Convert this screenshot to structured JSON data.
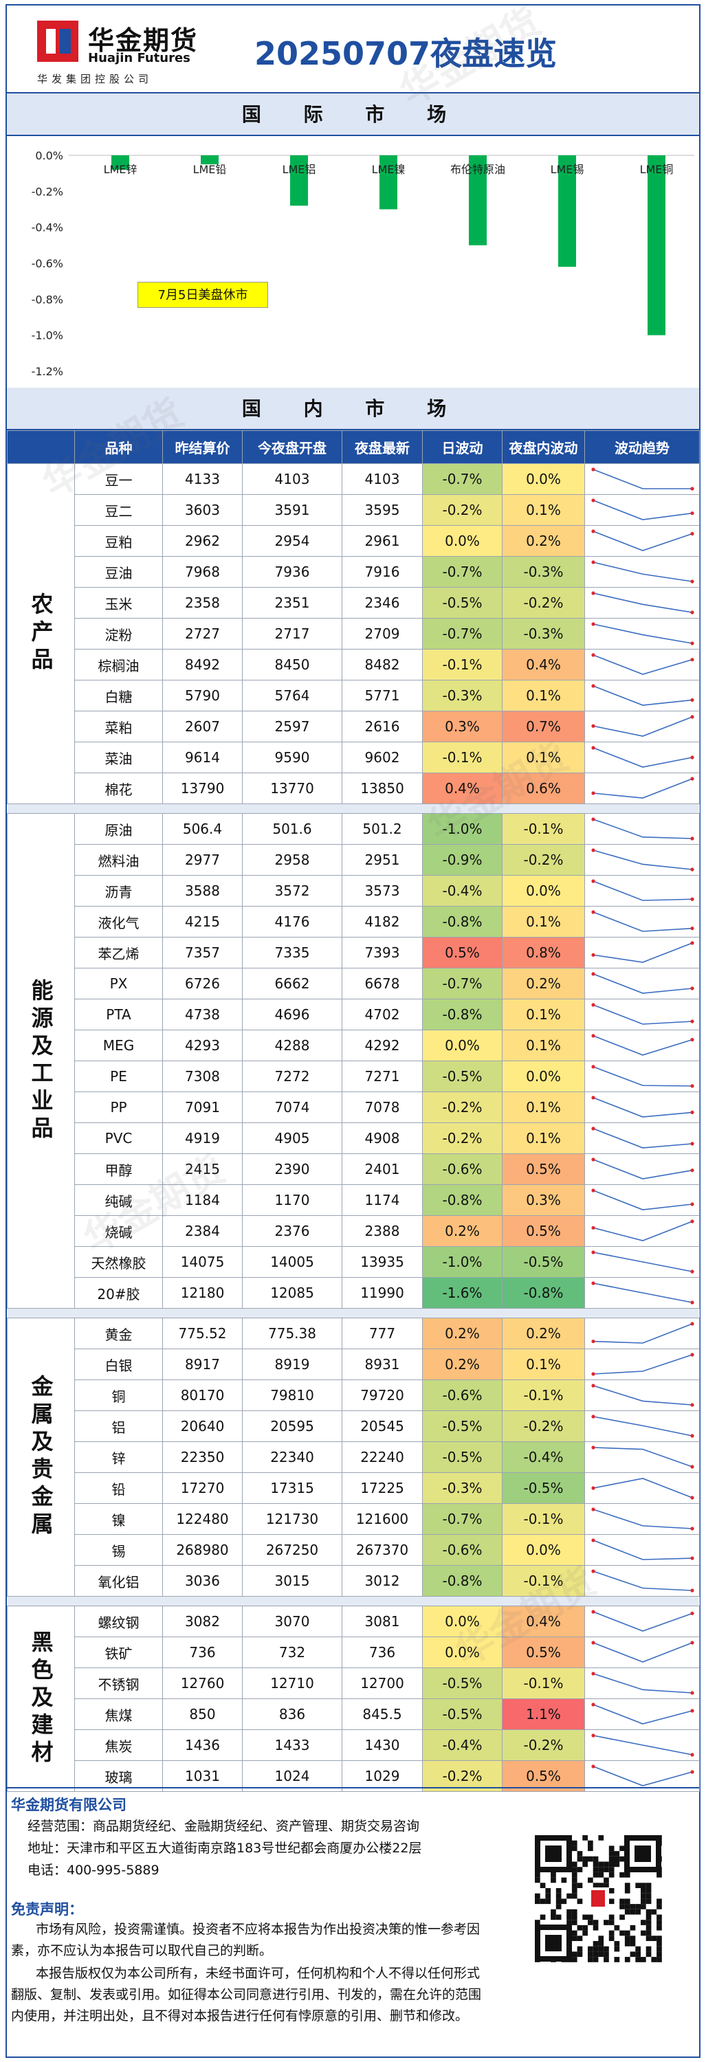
{
  "header": {
    "brand_cn": "华金期货",
    "brand_en": "Huajin Futures",
    "brand_sub": "华发集团控股公司",
    "title": "20250707夜盘速览"
  },
  "intl": {
    "title": "国 际 市 场",
    "note": "7月5日美盘休市",
    "chart_data": {
      "type": "bar",
      "categories": [
        "LME锌",
        "LME铅",
        "LME铝",
        "LME镍",
        "布伦特原油",
        "LME锡",
        "LME铜"
      ],
      "values": [
        -0.08,
        -0.05,
        -0.28,
        -0.3,
        -0.5,
        -0.62,
        -1.0
      ],
      "ylim": [
        -1.2,
        0.0
      ],
      "yticks": [
        "0.0%",
        "-0.2%",
        "-0.4%",
        "-0.6%",
        "-0.8%",
        "-1.0%",
        "-1.2%"
      ],
      "color": "#00b050"
    }
  },
  "domestic": {
    "title": "国 内 市 场",
    "headers": [
      "品种",
      "昨结算价",
      "今夜盘开盘",
      "夜盘最新",
      "日波动",
      "夜盘内波动",
      "波动趋势"
    ],
    "groups": [
      {
        "name": "农产品",
        "rows": [
          [
            "豆一",
            "4133",
            "4103",
            "4103",
            "-0.7%",
            "0.0%"
          ],
          [
            "豆二",
            "3603",
            "3591",
            "3595",
            "-0.2%",
            "0.1%"
          ],
          [
            "豆粕",
            "2962",
            "2954",
            "2961",
            "0.0%",
            "0.2%"
          ],
          [
            "豆油",
            "7968",
            "7936",
            "7916",
            "-0.7%",
            "-0.3%"
          ],
          [
            "玉米",
            "2358",
            "2351",
            "2346",
            "-0.5%",
            "-0.2%"
          ],
          [
            "淀粉",
            "2727",
            "2717",
            "2709",
            "-0.7%",
            "-0.3%"
          ],
          [
            "棕榈油",
            "8492",
            "8450",
            "8482",
            "-0.1%",
            "0.4%"
          ],
          [
            "白糖",
            "5790",
            "5764",
            "5771",
            "-0.3%",
            "0.1%"
          ],
          [
            "菜粕",
            "2607",
            "2597",
            "2616",
            "0.3%",
            "0.7%"
          ],
          [
            "菜油",
            "9614",
            "9590",
            "9602",
            "-0.1%",
            "0.1%"
          ],
          [
            "棉花",
            "13790",
            "13770",
            "13850",
            "0.4%",
            "0.6%"
          ]
        ]
      },
      {
        "name": "能源及工业品",
        "rows": [
          [
            "原油",
            "506.4",
            "501.6",
            "501.2",
            "-1.0%",
            "-0.1%"
          ],
          [
            "燃料油",
            "2977",
            "2958",
            "2951",
            "-0.9%",
            "-0.2%"
          ],
          [
            "沥青",
            "3588",
            "3572",
            "3573",
            "-0.4%",
            "0.0%"
          ],
          [
            "液化气",
            "4215",
            "4176",
            "4182",
            "-0.8%",
            "0.1%"
          ],
          [
            "苯乙烯",
            "7357",
            "7335",
            "7393",
            "0.5%",
            "0.8%"
          ],
          [
            "PX",
            "6726",
            "6662",
            "6678",
            "-0.7%",
            "0.2%"
          ],
          [
            "PTA",
            "4738",
            "4696",
            "4702",
            "-0.8%",
            "0.1%"
          ],
          [
            "MEG",
            "4293",
            "4288",
            "4292",
            "0.0%",
            "0.1%"
          ],
          [
            "PE",
            "7308",
            "7272",
            "7271",
            "-0.5%",
            "0.0%"
          ],
          [
            "PP",
            "7091",
            "7074",
            "7078",
            "-0.2%",
            "0.1%"
          ],
          [
            "PVC",
            "4919",
            "4905",
            "4908",
            "-0.2%",
            "0.1%"
          ],
          [
            "甲醇",
            "2415",
            "2390",
            "2401",
            "-0.6%",
            "0.5%"
          ],
          [
            "纯碱",
            "1184",
            "1170",
            "1174",
            "-0.8%",
            "0.3%"
          ],
          [
            "烧碱",
            "2384",
            "2376",
            "2388",
            "0.2%",
            "0.5%"
          ],
          [
            "天然橡胶",
            "14075",
            "14005",
            "13935",
            "-1.0%",
            "-0.5%"
          ],
          [
            "20#胶",
            "12180",
            "12085",
            "11990",
            "-1.6%",
            "-0.8%"
          ]
        ]
      },
      {
        "name": "金属及贵金属",
        "rows": [
          [
            "黄金",
            "775.52",
            "775.38",
            "777",
            "0.2%",
            "0.2%"
          ],
          [
            "白银",
            "8917",
            "8919",
            "8931",
            "0.2%",
            "0.1%"
          ],
          [
            "铜",
            "80170",
            "79810",
            "79720",
            "-0.6%",
            "-0.1%"
          ],
          [
            "铝",
            "20640",
            "20595",
            "20545",
            "-0.5%",
            "-0.2%"
          ],
          [
            "锌",
            "22350",
            "22340",
            "22240",
            "-0.5%",
            "-0.4%"
          ],
          [
            "铅",
            "17270",
            "17315",
            "17225",
            "-0.3%",
            "-0.5%"
          ],
          [
            "镍",
            "122480",
            "121730",
            "121600",
            "-0.7%",
            "-0.1%"
          ],
          [
            "锡",
            "268980",
            "267250",
            "267370",
            "-0.6%",
            "0.0%"
          ],
          [
            "氧化铝",
            "3036",
            "3015",
            "3012",
            "-0.8%",
            "-0.1%"
          ]
        ]
      },
      {
        "name": "黑色及建材",
        "rows": [
          [
            "螺纹钢",
            "3082",
            "3070",
            "3081",
            "0.0%",
            "0.4%"
          ],
          [
            "铁矿",
            "736",
            "732",
            "736",
            "0.0%",
            "0.5%"
          ],
          [
            "不锈钢",
            "12760",
            "12710",
            "12700",
            "-0.5%",
            "-0.1%"
          ],
          [
            "焦煤",
            "850",
            "836",
            "845.5",
            "-0.5%",
            "1.1%"
          ],
          [
            "焦炭",
            "1436",
            "1433",
            "1430",
            "-0.4%",
            "-0.2%"
          ],
          [
            "玻璃",
            "1031",
            "1024",
            "1029",
            "-0.2%",
            "0.5%"
          ]
        ]
      }
    ]
  },
  "footer": {
    "company": "华金期货有限公司",
    "scope": "经营范围：商品期货经纪、金融期货经纪、资产管理、期货交易咨询",
    "address": "地址：天津市和平区五大道街南京路183号世纪都会商厦办公楼22层",
    "phone": "电话：400-995-5889",
    "disclaimer_title": "免责声明：",
    "disclaimer_1": "市场有风险，投资需谨慎。投资者不应将本报告为作出投资决策的惟一参考因素，亦不应认为本报告可以取代自己的判断。",
    "disclaimer_2": "本报告版权仅为本公司所有，未经书面许可，任何机构和个人不得以任何形式翻版、复制、发表或引用。如征得本公司同意进行引用、刊发的，需在允许的范围内使用，并注明出处，且不得对本报告进行任何有悖原意的引用、删节和修改。",
    "watermark": "华金期货"
  }
}
